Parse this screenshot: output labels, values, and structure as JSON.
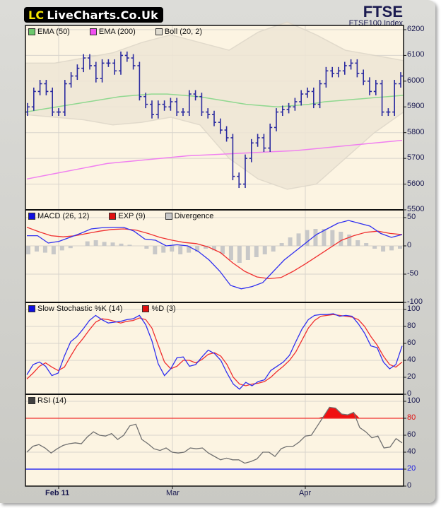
{
  "header": {
    "logo_mark": "LC",
    "logo_text": "LiveCharts.Co.Uk",
    "title": "FTSE",
    "subtitle": "FTSE100 Index"
  },
  "colors": {
    "panel_bg": "#fcf4e2",
    "price_bar": "#2b2ba0",
    "ema50": "#90d890",
    "ema200": "#f080f0",
    "bollinger_fill": "#efe6d6",
    "macd": "#3030f0",
    "exp": "#f03030",
    "divergence": "#c8c8c8",
    "stoch_k": "#3030f0",
    "stoch_d": "#f03030",
    "rsi": "#707070",
    "rsi_upper": "#f03030",
    "rsi_lower": "#3030f0"
  },
  "legends": {
    "price": [
      {
        "label": "EMA (50)",
        "color": "#6cc86c"
      },
      {
        "label": "EMA (200)",
        "color": "#f050f0"
      },
      {
        "label": "Boll (20, 2)",
        "color": "#e0dcd0"
      }
    ],
    "macd": [
      {
        "label": "MACD (26, 12)",
        "color": "#1010e0"
      },
      {
        "label": "EXP (9)",
        "color": "#e01010"
      },
      {
        "label": "Divergence",
        "color": "#c8c8c8"
      }
    ],
    "stoch": [
      {
        "label": "Slow Stochastic %K (14)",
        "color": "#1010e0"
      },
      {
        "label": "%D (3)",
        "color": "#e01010"
      }
    ],
    "rsi": [
      {
        "label": "RSI (14)",
        "color": "#404040"
      }
    ]
  },
  "axes": {
    "price_ticks": [
      "6200",
      "6100",
      "6000",
      "5900",
      "5800",
      "5700",
      "5600",
      "5500"
    ],
    "macd_ticks": [
      "50",
      "0",
      "-50",
      "-100"
    ],
    "stoch_ticks": [
      "100",
      "80",
      "60",
      "40",
      "20",
      "0"
    ],
    "rsi_ticks": [
      "100",
      "80",
      "60",
      "40",
      "20",
      "0"
    ],
    "x_ticks": [
      "Feb 11",
      "Mar",
      "Apr"
    ]
  },
  "chart_data": [
    {
      "type": "bar",
      "subtype": "ohlc",
      "title": "FTSE",
      "subtitle": "FTSE100 Index",
      "xlabel": "",
      "ylabel": "",
      "ylim": [
        5500,
        6200
      ],
      "x_ticks": [
        "Feb 11",
        "Mar",
        "Apr"
      ],
      "grid": true,
      "legend": [
        "EMA (50)",
        "EMA (200)",
        "Boll (20, 2)"
      ],
      "close_approx": [
        5900,
        5960,
        5990,
        5960,
        5880,
        5880,
        5990,
        6020,
        6050,
        6090,
        6060,
        6010,
        6070,
        6070,
        6040,
        6100,
        6090,
        6060,
        5940,
        5910,
        5870,
        5910,
        5900,
        5920,
        5880,
        5880,
        5950,
        5940,
        5880,
        5870,
        5840,
        5810,
        5780,
        5630,
        5600,
        5700,
        5760,
        5780,
        5740,
        5820,
        5880,
        5890,
        5900,
        5920,
        5950,
        5960,
        5910,
        5990,
        6040,
        6030,
        6040,
        6060,
        6070,
        6030,
        6000,
        5960,
        5990,
        5880,
        5880,
        5990,
        6020
      ],
      "series": [
        {
          "name": "EMA (50)",
          "values_approx": [
            5880,
            5890,
            5900,
            5910,
            5920,
            5930,
            5940,
            5945,
            5950,
            5950,
            5945,
            5940,
            5930,
            5920,
            5910,
            5905,
            5900,
            5905,
            5910,
            5920,
            5925,
            5930,
            5935,
            5940,
            5945
          ]
        },
        {
          "name": "EMA (200)",
          "values_approx": [
            5620,
            5640,
            5660,
            5680,
            5690,
            5700,
            5710,
            5715,
            5720,
            5725,
            5730,
            5740,
            5750,
            5760,
            5770
          ]
        },
        {
          "name": "Boll upper",
          "values_approx": [
            6070,
            6070,
            6090,
            6110,
            6150,
            6180,
            6150,
            6120,
            6190,
            6230,
            6180,
            6120,
            6100,
            6080
          ]
        },
        {
          "name": "Boll lower",
          "values_approx": [
            5870,
            5860,
            5850,
            5830,
            5840,
            5860,
            5830,
            5700,
            5620,
            5580,
            5600,
            5700,
            5800,
            5880
          ]
        }
      ]
    },
    {
      "type": "line",
      "title": "MACD (26, 12)",
      "ylim": [
        -100,
        50
      ],
      "legend": [
        "MACD (26, 12)",
        "EXP (9)",
        "Divergence"
      ],
      "series": [
        {
          "name": "MACD (26, 12)",
          "values_approx": [
            18,
            18,
            5,
            8,
            15,
            22,
            30,
            32,
            33,
            33,
            26,
            12,
            10,
            0,
            2,
            0,
            -10,
            -25,
            -45,
            -70,
            -76,
            -72,
            -65,
            -45,
            -25,
            -10,
            5,
            20,
            30,
            40,
            45,
            40,
            35,
            22,
            15,
            20
          ]
        },
        {
          "name": "EXP (9)",
          "values_approx": [
            33,
            25,
            18,
            16,
            18,
            22,
            26,
            29,
            30,
            28,
            22,
            15,
            10,
            6,
            4,
            -2,
            -12,
            -30,
            -45,
            -55,
            -58,
            -56,
            -45,
            -32,
            -18,
            -4,
            10,
            18,
            24,
            26,
            22,
            20
          ]
        },
        {
          "name": "Divergence",
          "values_approx": [
            -15,
            -10,
            -12,
            -15,
            -8,
            -4,
            0,
            8,
            10,
            7,
            6,
            4,
            2,
            0,
            -5,
            -15,
            -12,
            -10,
            -15,
            -12,
            -10,
            -5,
            -8,
            -15,
            -25,
            -30,
            -25,
            -20,
            -15,
            -10,
            5,
            15,
            22,
            28,
            30,
            30,
            28,
            25,
            20,
            10,
            5,
            -5,
            -10,
            -8,
            -5
          ]
        }
      ]
    },
    {
      "type": "line",
      "title": "Slow Stochastic %K (14)",
      "ylim": [
        0,
        100
      ],
      "legend": [
        "Slow Stochastic %K (14)",
        "%D (3)"
      ],
      "series": [
        {
          "name": "Slow Stochastic %K (14)",
          "values_approx": [
            23,
            35,
            38,
            33,
            22,
            25,
            45,
            62,
            68,
            77,
            87,
            93,
            88,
            84,
            85,
            86,
            88,
            89,
            93,
            82,
            63,
            36,
            22,
            30,
            43,
            44,
            33,
            35,
            44,
            52,
            48,
            40,
            25,
            12,
            6,
            14,
            10,
            15,
            17,
            28,
            33,
            38,
            46,
            62,
            77,
            88,
            93,
            94,
            94,
            95,
            92,
            93,
            92,
            83,
            72,
            57,
            55,
            38,
            30,
            35,
            57
          ]
        },
        {
          "name": "%D (3)",
          "values_approx": [
            18,
            25,
            33,
            37,
            32,
            28,
            32,
            45,
            57,
            66,
            76,
            85,
            89,
            88,
            86,
            84,
            86,
            87,
            90,
            88,
            78,
            58,
            38,
            30,
            33,
            40,
            40,
            37,
            41,
            47,
            49,
            45,
            35,
            20,
            12,
            10,
            12,
            13,
            15,
            20,
            27,
            33,
            40,
            50,
            64,
            78,
            87,
            92,
            93,
            94,
            93,
            92,
            91,
            88,
            80,
            68,
            58,
            45,
            35,
            32,
            38
          ]
        }
      ]
    },
    {
      "type": "line",
      "title": "RSI (14)",
      "ylim": [
        0,
        100
      ],
      "legend": [
        "RSI (14)"
      ],
      "reference_lines": [
        {
          "y": 80,
          "color": "#f03030"
        },
        {
          "y": 20,
          "color": "#3030f0"
        }
      ],
      "series": [
        {
          "name": "RSI (14)",
          "values_approx": [
            40,
            47,
            49,
            45,
            39,
            44,
            48,
            50,
            51,
            50,
            58,
            64,
            60,
            59,
            62,
            55,
            60,
            71,
            73,
            55,
            50,
            44,
            42,
            45,
            40,
            39,
            40,
            45,
            44,
            45,
            39,
            35,
            31,
            33,
            31,
            31,
            27,
            29,
            32,
            40,
            40,
            35,
            44,
            47,
            47,
            52,
            59,
            60,
            71,
            82,
            93,
            92,
            85,
            84,
            87,
            69,
            64,
            57,
            59,
            45,
            46,
            56,
            51
          ]
        }
      ]
    }
  ]
}
